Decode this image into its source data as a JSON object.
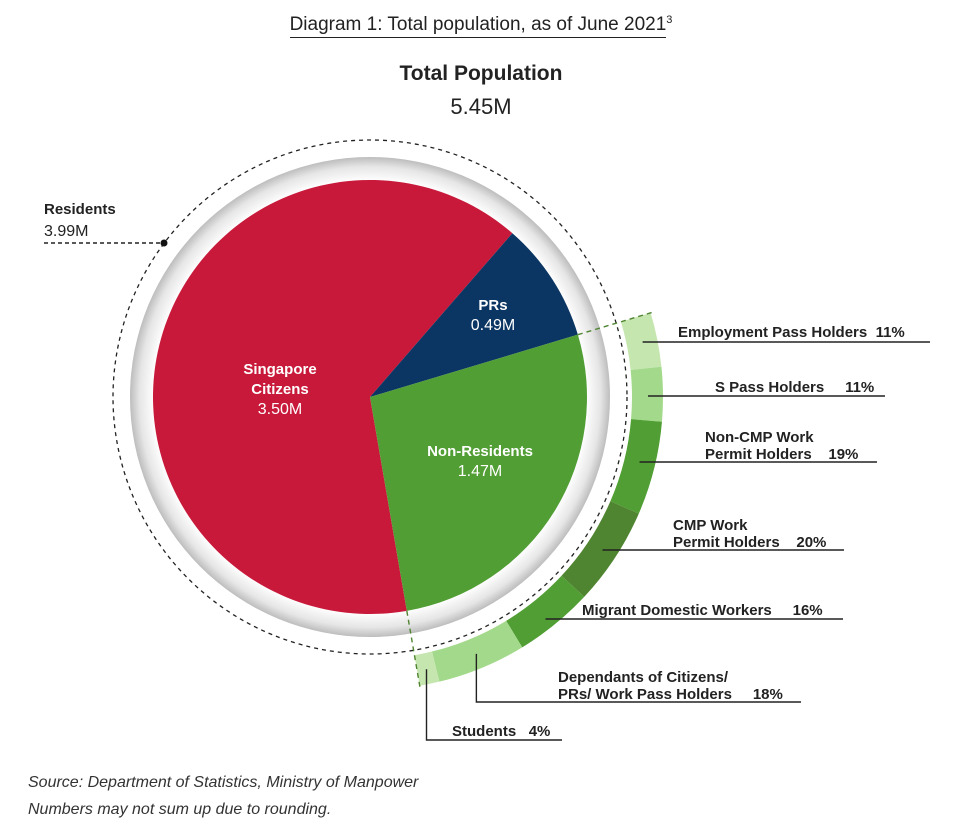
{
  "title": "Diagram 1: Total population, as of June 2021",
  "title_footnote": "3",
  "total": {
    "label": "Total Population",
    "value": "5.45M"
  },
  "residents": {
    "label": "Residents",
    "value": "3.99M"
  },
  "chart_data": {
    "type": "pie",
    "title": "Total Population 5.45M",
    "inner": [
      {
        "name": "Singapore Citizens",
        "label_line1": "Singapore",
        "label_line2": "Citizens",
        "value_label": "3.50M",
        "value": 3.5,
        "color": "#c8193a"
      },
      {
        "name": "PRs",
        "label_line1": "PRs",
        "value_label": "0.49M",
        "value": 0.49,
        "color": "#0b3563"
      },
      {
        "name": "Non-Residents",
        "label_line1": "Non-Residents",
        "value_label": "1.47M",
        "value": 1.47,
        "color": "#519e34"
      }
    ],
    "outer_nonresidents": [
      {
        "name": "Employment Pass Holders",
        "label": "Employment Pass Holders",
        "pct_label": "11%",
        "value": 11,
        "color": "#c6e6b0"
      },
      {
        "name": "S Pass Holders",
        "label": "S Pass Holders",
        "pct_label": "11%",
        "value": 11,
        "color": "#a3d98a"
      },
      {
        "name": "Non-CMP Work Permit Holders",
        "label1": "Non-CMP Work",
        "label2": "Permit Holders",
        "pct_label": "19%",
        "value": 19,
        "color": "#519e34"
      },
      {
        "name": "CMP Work Permit Holders",
        "label1": "CMP Work",
        "label2": "Permit Holders",
        "pct_label": "20%",
        "value": 20,
        "color": "#4f8430"
      },
      {
        "name": "Migrant Domestic Workers",
        "label": "Migrant Domestic Workers",
        "pct_label": "16%",
        "value": 16,
        "color": "#519e34"
      },
      {
        "name": "Dependants of Citizens/PRs/Work Pass Holders",
        "label1": "Dependants of Citizens/",
        "label2": "PRs/ Work Pass Holders",
        "pct_label": "18%",
        "value": 18,
        "color": "#a3d98a"
      },
      {
        "name": "Students",
        "label": "Students",
        "pct_label": "4%",
        "value": 4,
        "color": "#c6e6b0"
      }
    ]
  },
  "footer": {
    "source": "Source: Department of Statistics, Ministry of Manpower",
    "note": "Numbers may not sum up due to rounding."
  }
}
